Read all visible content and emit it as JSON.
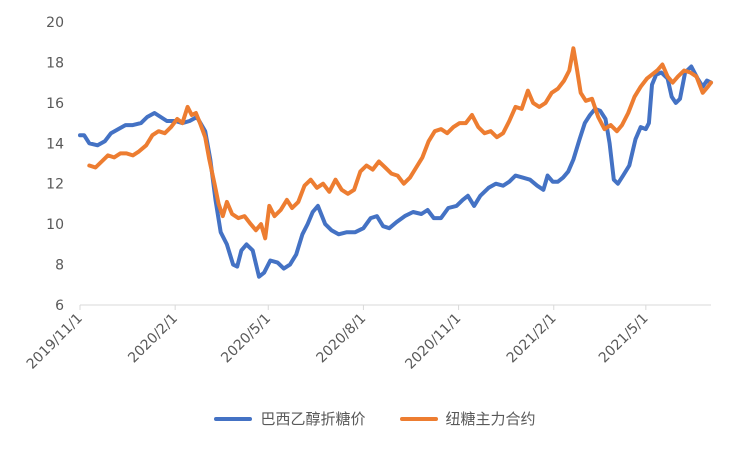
{
  "chart_data": {
    "type": "line",
    "title": "",
    "xlabel": "",
    "ylabel": "",
    "ylim": [
      6,
      20
    ],
    "yticks": [
      "6",
      "8",
      "10",
      "12",
      "14",
      "16",
      "18",
      "20"
    ],
    "xticks": [
      "2019/11/1",
      "2020/2/1",
      "2020/5/1",
      "2020/8/1",
      "2020/11/1",
      "2021/2/1",
      "2021/5/1"
    ],
    "xlim": [
      "2019/11/1",
      "2021/7/3"
    ],
    "grid": false,
    "legend": "bottom",
    "series": [
      {
        "name": "巴西乙醇折糖价",
        "color": "#4472C4",
        "points": [
          [
            "2019/11/1",
            14.4
          ],
          [
            "2019/11/5",
            14.4
          ],
          [
            "2019/11/10",
            14.0
          ],
          [
            "2019/11/18",
            13.9
          ],
          [
            "2019/11/25",
            14.1
          ],
          [
            "2019/12/1",
            14.5
          ],
          [
            "2019/12/8",
            14.7
          ],
          [
            "2019/12/15",
            14.9
          ],
          [
            "2019/12/22",
            14.9
          ],
          [
            "2019/12/30",
            15.0
          ],
          [
            "2020/1/5",
            15.3
          ],
          [
            "2020/1/12",
            15.5
          ],
          [
            "2020/1/18",
            15.3
          ],
          [
            "2020/1/24",
            15.1
          ],
          [
            "2020/2/1",
            15.1
          ],
          [
            "2020/2/8",
            15.0
          ],
          [
            "2020/2/15",
            15.1
          ],
          [
            "2020/2/22",
            15.3
          ],
          [
            "2020/3/1",
            14.6
          ],
          [
            "2020/3/6",
            13.2
          ],
          [
            "2020/3/11",
            11.2
          ],
          [
            "2020/3/16",
            9.6
          ],
          [
            "2020/3/22",
            9.0
          ],
          [
            "2020/3/28",
            8.0
          ],
          [
            "2020/4/1",
            7.9
          ],
          [
            "2020/4/5",
            8.7
          ],
          [
            "2020/4/10",
            9.0
          ],
          [
            "2020/4/16",
            8.7
          ],
          [
            "2020/4/22",
            7.4
          ],
          [
            "2020/4/27",
            7.6
          ],
          [
            "2020/5/3",
            8.2
          ],
          [
            "2020/5/10",
            8.1
          ],
          [
            "2020/5/16",
            7.8
          ],
          [
            "2020/5/22",
            8.0
          ],
          [
            "2020/5/28",
            8.5
          ],
          [
            "2020/6/3",
            9.5
          ],
          [
            "2020/6/8",
            10.0
          ],
          [
            "2020/6/13",
            10.6
          ],
          [
            "2020/6/18",
            10.9
          ],
          [
            "2020/6/25",
            10.0
          ],
          [
            "2020/7/1",
            9.7
          ],
          [
            "2020/7/8",
            9.5
          ],
          [
            "2020/7/16",
            9.6
          ],
          [
            "2020/7/24",
            9.6
          ],
          [
            "2020/8/1",
            9.8
          ],
          [
            "2020/8/8",
            10.3
          ],
          [
            "2020/8/14",
            10.4
          ],
          [
            "2020/8/20",
            9.9
          ],
          [
            "2020/8/26",
            9.8
          ],
          [
            "2020/9/2",
            10.1
          ],
          [
            "2020/9/10",
            10.4
          ],
          [
            "2020/9/18",
            10.6
          ],
          [
            "2020/9/26",
            10.5
          ],
          [
            "2020/10/2",
            10.7
          ],
          [
            "2020/10/8",
            10.3
          ],
          [
            "2020/10/15",
            10.3
          ],
          [
            "2020/10/22",
            10.8
          ],
          [
            "2020/10/30",
            10.9
          ],
          [
            "2020/11/5",
            11.2
          ],
          [
            "2020/11/10",
            11.4
          ],
          [
            "2020/11/16",
            10.9
          ],
          [
            "2020/11/22",
            11.4
          ],
          [
            "2020/11/30",
            11.8
          ],
          [
            "2020/12/7",
            12.0
          ],
          [
            "2020/12/14",
            11.9
          ],
          [
            "2020/12/20",
            12.1
          ],
          [
            "2020/12/26",
            12.4
          ],
          [
            "2021/1/2",
            12.3
          ],
          [
            "2021/1/9",
            12.2
          ],
          [
            "2021/1/16",
            11.9
          ],
          [
            "2021/1/22",
            11.7
          ],
          [
            "2021/1/26",
            12.4
          ],
          [
            "2021/1/31",
            12.1
          ],
          [
            "2021/2/5",
            12.1
          ],
          [
            "2021/2/10",
            12.3
          ],
          [
            "2021/2/15",
            12.6
          ],
          [
            "2021/2/20",
            13.2
          ],
          [
            "2021/2/26",
            14.2
          ],
          [
            "2021/3/3",
            15.0
          ],
          [
            "2021/3/8",
            15.4
          ],
          [
            "2021/3/13",
            15.7
          ],
          [
            "2021/3/18",
            15.6
          ],
          [
            "2021/3/23",
            15.2
          ],
          [
            "2021/3/27",
            14.0
          ],
          [
            "2021/3/31",
            12.2
          ],
          [
            "2021/4/4",
            12.0
          ],
          [
            "2021/4/9",
            12.4
          ],
          [
            "2021/4/15",
            12.9
          ],
          [
            "2021/4/21",
            14.2
          ],
          [
            "2021/4/26",
            14.8
          ],
          [
            "2021/5/1",
            14.7
          ],
          [
            "2021/5/4",
            15.0
          ],
          [
            "2021/5/7",
            16.9
          ],
          [
            "2021/5/11",
            17.4
          ],
          [
            "2021/5/16",
            17.5
          ],
          [
            "2021/5/22",
            17.2
          ],
          [
            "2021/5/26",
            16.3
          ],
          [
            "2021/5/30",
            16.0
          ],
          [
            "2021/6/3",
            16.2
          ],
          [
            "2021/6/8",
            17.5
          ],
          [
            "2021/6/14",
            17.8
          ],
          [
            "2021/6/20",
            17.2
          ],
          [
            "2021/6/25",
            16.8
          ],
          [
            "2021/6/29",
            17.1
          ],
          [
            "2021/7/3",
            17.0
          ]
        ]
      },
      {
        "name": "纽糖主力合约",
        "color": "#ED7D31",
        "points": [
          [
            "2019/11/10",
            12.9
          ],
          [
            "2019/11/16",
            12.8
          ],
          [
            "2019/11/22",
            13.1
          ],
          [
            "2019/11/28",
            13.4
          ],
          [
            "2019/12/4",
            13.3
          ],
          [
            "2019/12/10",
            13.5
          ],
          [
            "2019/12/16",
            13.5
          ],
          [
            "2019/12/22",
            13.4
          ],
          [
            "2019/12/28",
            13.6
          ],
          [
            "2020/1/4",
            13.9
          ],
          [
            "2020/1/10",
            14.4
          ],
          [
            "2020/1/16",
            14.6
          ],
          [
            "2020/1/22",
            14.5
          ],
          [
            "2020/1/28",
            14.8
          ],
          [
            "2020/2/3",
            15.2
          ],
          [
            "2020/2/8",
            15.0
          ],
          [
            "2020/2/13",
            15.8
          ],
          [
            "2020/2/17",
            15.4
          ],
          [
            "2020/2/21",
            15.5
          ],
          [
            "2020/2/25",
            15.0
          ],
          [
            "2020/3/1",
            14.3
          ],
          [
            "2020/3/5",
            13.2
          ],
          [
            "2020/3/10",
            12.0
          ],
          [
            "2020/3/14",
            11.0
          ],
          [
            "2020/3/18",
            10.4
          ],
          [
            "2020/3/22",
            11.1
          ],
          [
            "2020/3/27",
            10.5
          ],
          [
            "2020/4/2",
            10.3
          ],
          [
            "2020/4/8",
            10.4
          ],
          [
            "2020/4/14",
            10.0
          ],
          [
            "2020/4/19",
            9.7
          ],
          [
            "2020/4/24",
            10.0
          ],
          [
            "2020/4/28",
            9.3
          ],
          [
            "2020/5/2",
            10.9
          ],
          [
            "2020/5/7",
            10.4
          ],
          [
            "2020/5/13",
            10.7
          ],
          [
            "2020/5/19",
            11.2
          ],
          [
            "2020/5/24",
            10.8
          ],
          [
            "2020/5/30",
            11.1
          ],
          [
            "2020/6/5",
            11.9
          ],
          [
            "2020/6/11",
            12.2
          ],
          [
            "2020/6/17",
            11.8
          ],
          [
            "2020/6/23",
            12.0
          ],
          [
            "2020/6/29",
            11.6
          ],
          [
            "2020/7/5",
            12.2
          ],
          [
            "2020/7/11",
            11.7
          ],
          [
            "2020/7/17",
            11.5
          ],
          [
            "2020/7/23",
            11.7
          ],
          [
            "2020/7/29",
            12.6
          ],
          [
            "2020/8/4",
            12.9
          ],
          [
            "2020/8/10",
            12.7
          ],
          [
            "2020/8/16",
            13.1
          ],
          [
            "2020/8/22",
            12.8
          ],
          [
            "2020/8/28",
            12.5
          ],
          [
            "2020/9/3",
            12.4
          ],
          [
            "2020/9/9",
            12.0
          ],
          [
            "2020/9/15",
            12.3
          ],
          [
            "2020/9/21",
            12.8
          ],
          [
            "2020/9/27",
            13.3
          ],
          [
            "2020/10/3",
            14.1
          ],
          [
            "2020/10/9",
            14.6
          ],
          [
            "2020/10/15",
            14.7
          ],
          [
            "2020/10/21",
            14.5
          ],
          [
            "2020/10/27",
            14.8
          ],
          [
            "2020/11/2",
            15.0
          ],
          [
            "2020/11/8",
            15.0
          ],
          [
            "2020/11/14",
            15.4
          ],
          [
            "2020/11/20",
            14.8
          ],
          [
            "2020/11/26",
            14.5
          ],
          [
            "2020/12/2",
            14.6
          ],
          [
            "2020/12/8",
            14.3
          ],
          [
            "2020/12/14",
            14.5
          ],
          [
            "2020/12/20",
            15.1
          ],
          [
            "2020/12/26",
            15.8
          ],
          [
            "2021/1/1",
            15.7
          ],
          [
            "2021/1/7",
            16.6
          ],
          [
            "2021/1/12",
            16.0
          ],
          [
            "2021/1/18",
            15.8
          ],
          [
            "2021/1/24",
            16.0
          ],
          [
            "2021/1/30",
            16.5
          ],
          [
            "2021/2/5",
            16.7
          ],
          [
            "2021/2/11",
            17.1
          ],
          [
            "2021/2/16",
            17.6
          ],
          [
            "2021/2/20",
            18.7
          ],
          [
            "2021/2/23",
            17.8
          ],
          [
            "2021/2/27",
            16.5
          ],
          [
            "2021/3/4",
            16.1
          ],
          [
            "2021/3/10",
            16.2
          ],
          [
            "2021/3/16",
            15.3
          ],
          [
            "2021/3/22",
            14.7
          ],
          [
            "2021/3/28",
            14.9
          ],
          [
            "2021/4/3",
            14.6
          ],
          [
            "2021/4/8",
            14.9
          ],
          [
            "2021/4/14",
            15.5
          ],
          [
            "2021/4/20",
            16.3
          ],
          [
            "2021/4/26",
            16.8
          ],
          [
            "2021/5/2",
            17.2
          ],
          [
            "2021/5/7",
            17.4
          ],
          [
            "2021/5/12",
            17.6
          ],
          [
            "2021/5/17",
            17.9
          ],
          [
            "2021/5/22",
            17.3
          ],
          [
            "2021/5/27",
            17.0
          ],
          [
            "2021/6/1",
            17.3
          ],
          [
            "2021/6/7",
            17.6
          ],
          [
            "2021/6/13",
            17.5
          ],
          [
            "2021/6/19",
            17.3
          ],
          [
            "2021/6/25",
            16.5
          ],
          [
            "2021/6/30",
            16.8
          ],
          [
            "2021/7/3",
            17.0
          ]
        ]
      }
    ]
  }
}
